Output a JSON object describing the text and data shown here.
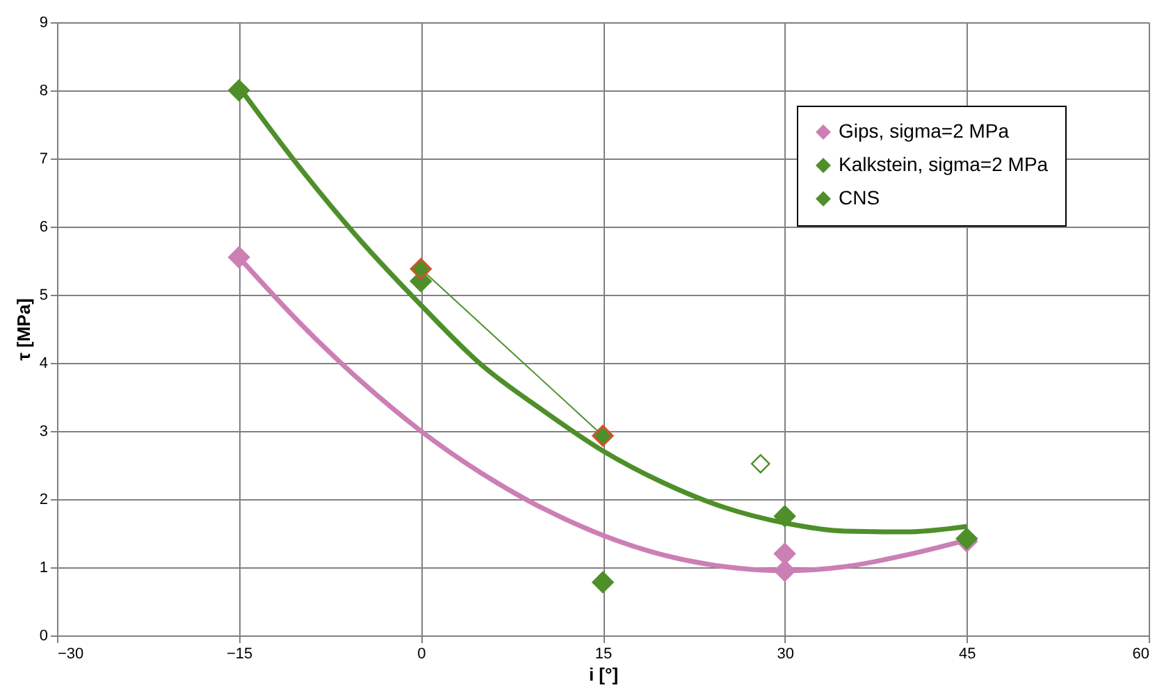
{
  "chart_data": {
    "type": "scatter",
    "xlabel": "i [°]",
    "ylabel": "τ [MPa]",
    "xlim": [
      -30,
      60
    ],
    "xticks": [
      -30,
      -15,
      0,
      15,
      30,
      45,
      60
    ],
    "ylim": [
      0,
      9
    ],
    "yticks": [
      0,
      1,
      2,
      3,
      4,
      5,
      6,
      7,
      8,
      9
    ],
    "grid": true,
    "legend": "top right",
    "marker": "diamond",
    "line_style": "solid",
    "series": [
      {
        "type": "line",
        "color": "#cc7fb5",
        "marker": "none",
        "x": [
          -15,
          -10,
          -5,
          0,
          5,
          10,
          15,
          20,
          25,
          30,
          35,
          40,
          45
        ],
        "values": [
          5.55,
          4.59,
          3.74,
          3.0,
          2.38,
          1.87,
          1.47,
          1.18,
          1.01,
          0.95,
          1.01,
          1.18,
          1.4
        ]
      },
      {
        "type": "line",
        "color": "#4e8f2a",
        "marker": "none",
        "x": [
          -15,
          -10,
          -5,
          0,
          5,
          10,
          15,
          20,
          25,
          30,
          35,
          40,
          45
        ],
        "values": [
          8.05,
          6.87,
          5.8,
          4.85,
          3.97,
          3.31,
          2.71,
          2.24,
          1.88,
          1.65,
          1.53,
          1.52,
          1.6
        ]
      },
      {
        "name": "Gips, sigma=2 MPa",
        "color": "#cc7fb5",
        "x": [
          -15,
          30,
          30,
          45
        ],
        "values": [
          5.55,
          1.2,
          0.95,
          1.38
        ]
      },
      {
        "name": "Kalkstein, sigma=2 MPa",
        "color": "#4e8f2a",
        "x": [
          -15,
          0,
          15,
          30,
          45
        ],
        "values": [
          8.0,
          5.2,
          0.78,
          1.75,
          1.42
        ]
      },
      {
        "name": "CNS",
        "type": "line",
        "color": "#4e8f2a",
        "x": [
          0,
          15
        ],
        "values": [
          5.38,
          2.93
        ]
      },
      {
        "color": "#4e8f2a",
        "x": [
          28
        ],
        "values": [
          2.52
        ]
      }
    ]
  }
}
